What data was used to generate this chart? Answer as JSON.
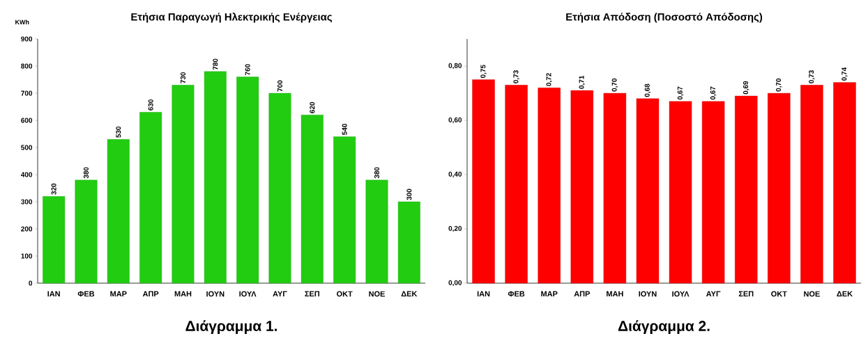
{
  "chart_data": [
    {
      "type": "bar",
      "title": "Ετήσια Παραγωγή Ηλεκτρικής Ενέργειας",
      "ylabel": "KWh",
      "categories": [
        "ΙΑΝ",
        "ΦΕΒ",
        "ΜΑΡ",
        "ΑΠΡ",
        "ΜΑΗ",
        "ΙΟΥΝ",
        "ΙΟΥΛ",
        "ΑΥΓ",
        "ΣΕΠ",
        "ΟΚΤ",
        "ΝΟΕ",
        "ΔΕΚ"
      ],
      "values": [
        320,
        380,
        530,
        630,
        730,
        780,
        760,
        700,
        620,
        540,
        380,
        300
      ],
      "color": "#22cc11",
      "ylim": [
        0,
        900
      ],
      "yticks": [
        0,
        100,
        200,
        300,
        400,
        500,
        600,
        700,
        800,
        900
      ],
      "data_labels": true,
      "annotations": [
        "Διάγραμμα 1."
      ]
    },
    {
      "type": "bar",
      "title": "Ετήσια Απόδοση (Ποσοστό Απόδοσης)",
      "categories": [
        "ΙΑΝ",
        "ΦΕΒ",
        "ΜΑΡ",
        "ΑΠΡ",
        "ΜΑΗ",
        "ΙΟΥΝ",
        "ΙΟΥΛ",
        "ΑΥΓ",
        "ΣΕΠ",
        "ΟΚΤ",
        "ΝΟΕ",
        "ΔΕΚ"
      ],
      "values": [
        0.75,
        0.73,
        0.72,
        0.71,
        0.7,
        0.68,
        0.67,
        0.67,
        0.69,
        0.7,
        0.73,
        0.74
      ],
      "value_labels": [
        "0,75",
        "0,73",
        "0,72",
        "0,71",
        "0,70",
        "0,68",
        "0,67",
        "0,67",
        "0,69",
        "0,70",
        "0,73",
        "0,74"
      ],
      "color": "#ff0000",
      "ylim": [
        0,
        0.9
      ],
      "yticks": [
        {
          "value": 0,
          "label": "0,00"
        },
        {
          "value": 0.2,
          "label": "0,20"
        },
        {
          "value": 0.4,
          "label": "0,40"
        },
        {
          "value": 0.6,
          "label": "0,60"
        },
        {
          "value": 0.8,
          "label": "0,80"
        }
      ],
      "annotations": [
        "Διάγραμμα 2."
      ]
    }
  ]
}
